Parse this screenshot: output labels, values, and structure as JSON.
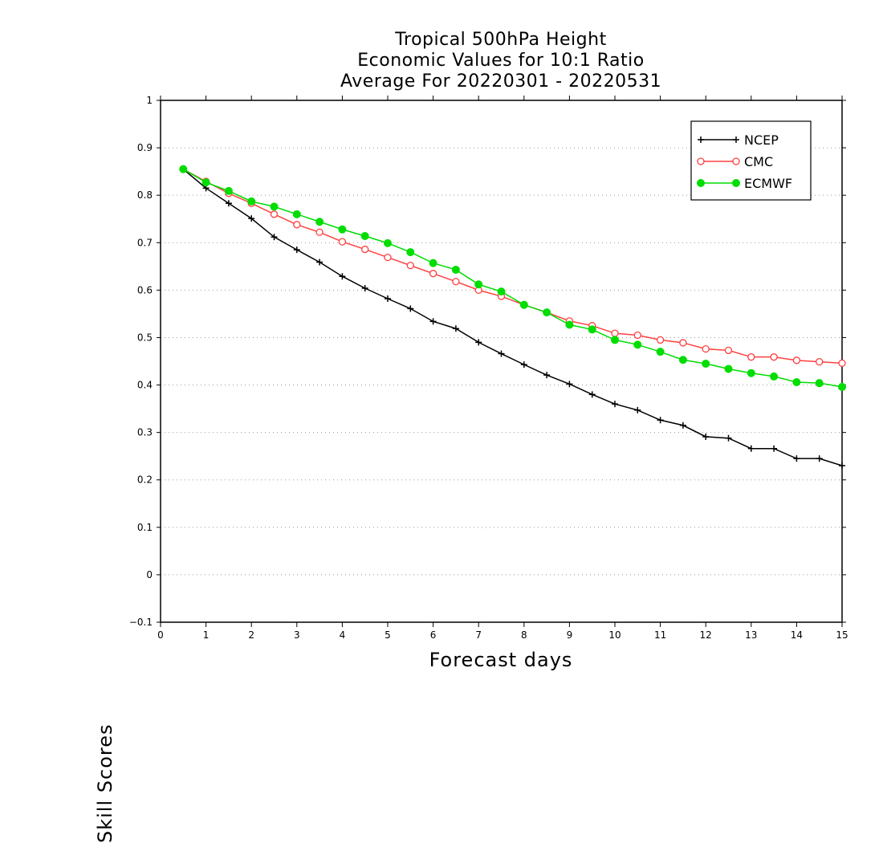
{
  "chart_data": {
    "type": "line",
    "title": [
      "Tropical 500hPa Height",
      "Economic Values for 10:1 Ratio",
      "Average For 20220301 - 20220531"
    ],
    "xlabel": "Forecast days",
    "ylabel": "Skill Scores",
    "xlim": [
      0,
      15
    ],
    "ylim": [
      -0.1,
      1
    ],
    "xticks": [
      "0",
      "1",
      "2",
      "3",
      "4",
      "5",
      "6",
      "7",
      "8",
      "9",
      "10",
      "11",
      "12",
      "13",
      "14",
      "15"
    ],
    "yticks": [
      "−0.1",
      "0",
      "0.1",
      "0.2",
      "0.3",
      "0.4",
      "0.5",
      "0.6",
      "0.7",
      "0.8",
      "0.9",
      "1"
    ],
    "grid": "horizontal dotted",
    "legend_position": "top-right",
    "x": [
      0.5,
      1,
      1.5,
      2,
      2.5,
      3,
      3.5,
      4,
      4.5,
      5,
      5.5,
      6,
      6.5,
      7,
      7.5,
      8,
      8.5,
      9,
      9.5,
      10,
      10.5,
      11,
      11.5,
      12,
      12.5,
      13,
      13.5,
      14,
      14.5,
      15
    ],
    "series": [
      {
        "name": "NCEP",
        "color": "#000000",
        "marker": "plus",
        "values": [
          0.855,
          0.815,
          0.783,
          0.751,
          0.712,
          0.685,
          0.659,
          0.629,
          0.604,
          0.582,
          0.561,
          0.534,
          0.519,
          0.49,
          0.466,
          0.443,
          0.421,
          0.402,
          0.38,
          0.36,
          0.347,
          0.326,
          0.315,
          0.291,
          0.288,
          0.266,
          0.266,
          0.245,
          0.245,
          0.23
        ]
      },
      {
        "name": "CMC",
        "color": "#ff4040",
        "marker": "open-circle",
        "values": [
          0.855,
          0.829,
          0.804,
          0.783,
          0.76,
          0.738,
          0.722,
          0.702,
          0.686,
          0.669,
          0.652,
          0.635,
          0.618,
          0.6,
          0.587,
          0.569,
          0.553,
          0.535,
          0.525,
          0.509,
          0.505,
          0.495,
          0.489,
          0.476,
          0.473,
          0.459,
          0.459,
          0.452,
          0.449,
          0.446
        ]
      },
      {
        "name": "ECMWF",
        "color": "#00dd00",
        "marker": "filled-circle",
        "values": [
          0.855,
          0.827,
          0.809,
          0.787,
          0.776,
          0.76,
          0.744,
          0.728,
          0.714,
          0.699,
          0.68,
          0.657,
          0.643,
          0.612,
          0.597,
          0.569,
          0.553,
          0.527,
          0.517,
          0.495,
          0.485,
          0.47,
          0.453,
          0.445,
          0.434,
          0.425,
          0.418,
          0.406,
          0.404,
          0.396
        ]
      }
    ]
  }
}
